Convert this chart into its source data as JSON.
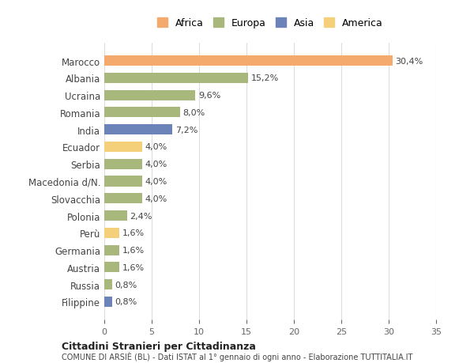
{
  "countries": [
    "Marocco",
    "Albania",
    "Ucraina",
    "Romania",
    "India",
    "Ecuador",
    "Serbia",
    "Macedonia d/N.",
    "Slovacchia",
    "Polonia",
    "Perù",
    "Germania",
    "Austria",
    "Russia",
    "Filippine"
  ],
  "values": [
    30.4,
    15.2,
    9.6,
    8.0,
    7.2,
    4.0,
    4.0,
    4.0,
    4.0,
    2.4,
    1.6,
    1.6,
    1.6,
    0.8,
    0.8
  ],
  "labels": [
    "30,4%",
    "15,2%",
    "9,6%",
    "8,0%",
    "7,2%",
    "4,0%",
    "4,0%",
    "4,0%",
    "4,0%",
    "2,4%",
    "1,6%",
    "1,6%",
    "1,6%",
    "0,8%",
    "0,8%"
  ],
  "continents": [
    "Africa",
    "Europa",
    "Europa",
    "Europa",
    "Asia",
    "America",
    "Europa",
    "Europa",
    "Europa",
    "Europa",
    "America",
    "Europa",
    "Europa",
    "Europa",
    "Asia"
  ],
  "colors": {
    "Africa": "#F4A96D",
    "Europa": "#A8B87C",
    "Asia": "#6B83B8",
    "America": "#F5D07A"
  },
  "legend_order": [
    "Africa",
    "Europa",
    "Asia",
    "America"
  ],
  "title": "Cittadini Stranieri per Cittadinanza",
  "subtitle": "COMUNE DI ARSIÈ (BL) - Dati ISTAT al 1° gennaio di ogni anno - Elaborazione TUTTITALIA.IT",
  "xlim": [
    0,
    35
  ],
  "xticks": [
    0,
    5,
    10,
    15,
    20,
    25,
    30,
    35
  ],
  "bg_color": "#FFFFFF",
  "grid_color": "#DDDDDD"
}
